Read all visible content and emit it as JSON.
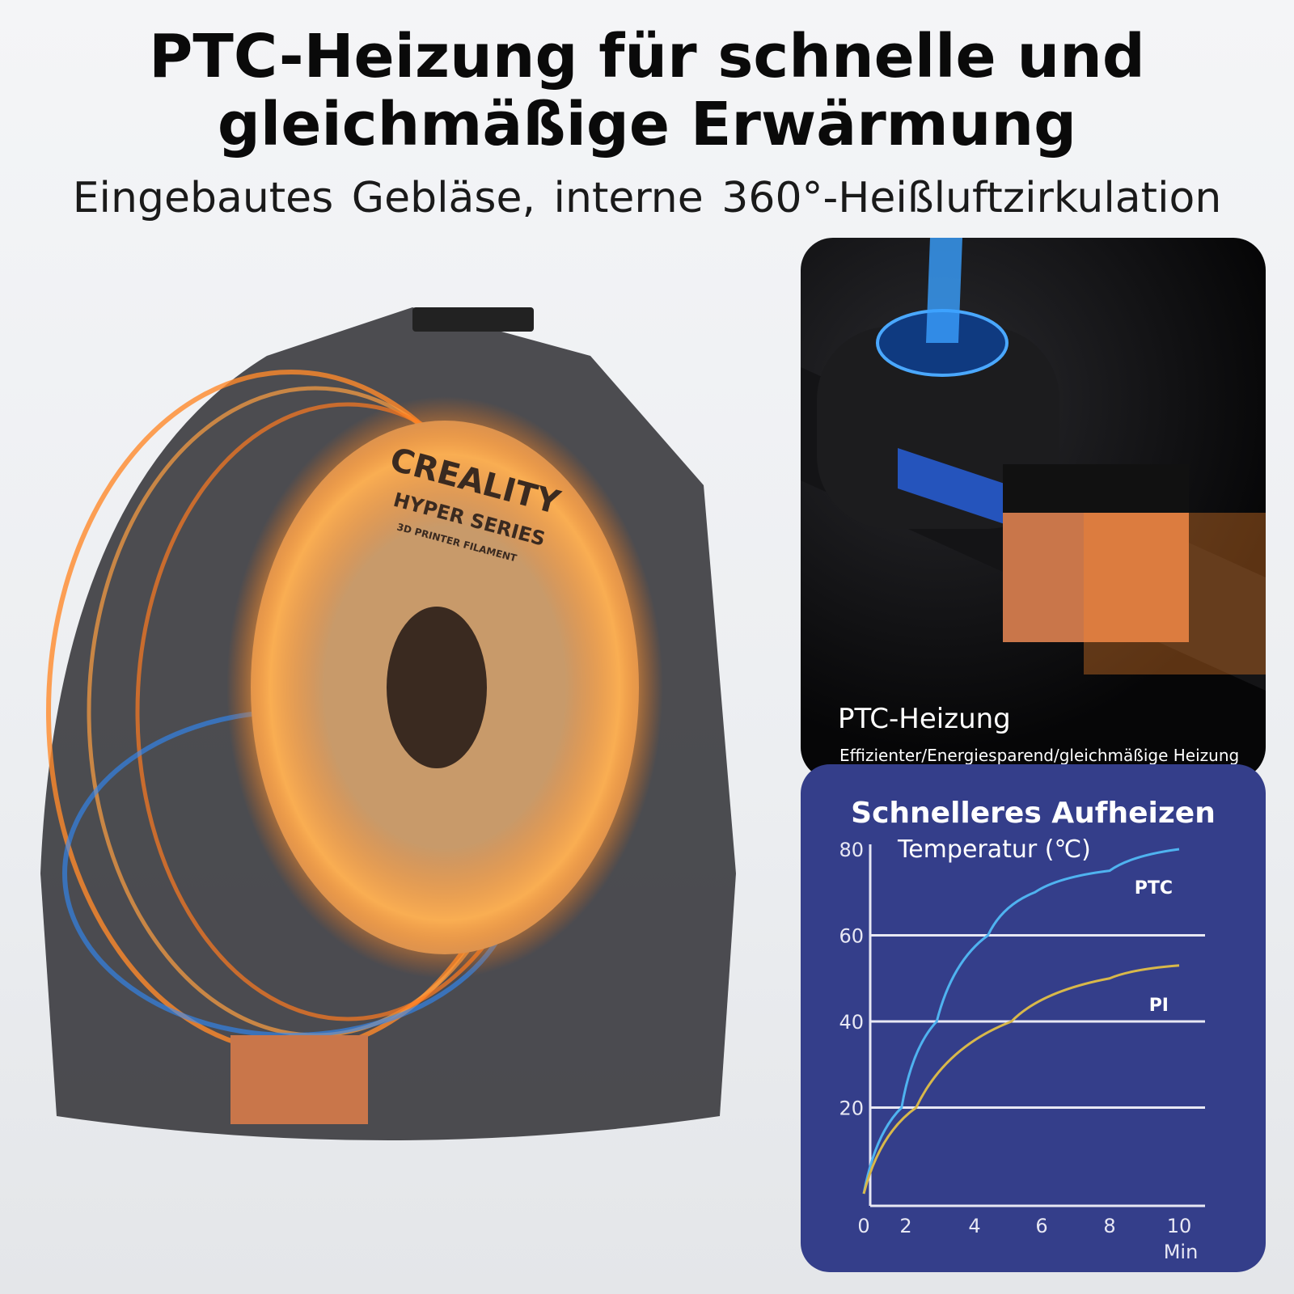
{
  "headline": {
    "line1": "PTC-Heizung für schnelle und",
    "line2": "gleichmäßige Erwärmung"
  },
  "subheadline": "Eingebautes Gebläse, interne  360°-Heißluftzirkulation",
  "product": {
    "logo_text": "CREALITY",
    "label_series": "HYPER SERIES",
    "label_sub": "3D PRINTER FILAMENT"
  },
  "photo_panel": {
    "title": "PTC-Heizung",
    "description": "Effizienter/Energiesparend/gleichmäßige Heizung"
  },
  "colors": {
    "chart_bg": "#343e8a",
    "ptc_line": "#4fb3f0",
    "pi_line": "#d8b84a",
    "glow_orange": "#ff8a2a",
    "glow_blue": "#2f8cff"
  },
  "chart_data": {
    "type": "line",
    "title": "Schnelleres Aufheizen",
    "ylabel": "Temperatur  (℃)",
    "xlabel": "Min",
    "xlim": [
      0,
      10
    ],
    "ylim": [
      0,
      80
    ],
    "x_ticks": [
      "0",
      "2",
      "4",
      "6",
      "8",
      "10"
    ],
    "y_ticks": [
      "20",
      "40",
      "60",
      "80"
    ],
    "grid": "horizontal",
    "series": [
      {
        "name": "PTC",
        "points": [
          [
            0,
            0
          ],
          [
            1.8,
            20
          ],
          [
            2.9,
            40
          ],
          [
            4.4,
            60
          ],
          [
            5.8,
            70
          ],
          [
            8,
            75
          ],
          [
            10,
            80
          ]
        ]
      },
      {
        "name": "PI",
        "points": [
          [
            0,
            0
          ],
          [
            2.3,
            20
          ],
          [
            5.1,
            40
          ],
          [
            8,
            50
          ],
          [
            10,
            53
          ]
        ]
      }
    ]
  }
}
